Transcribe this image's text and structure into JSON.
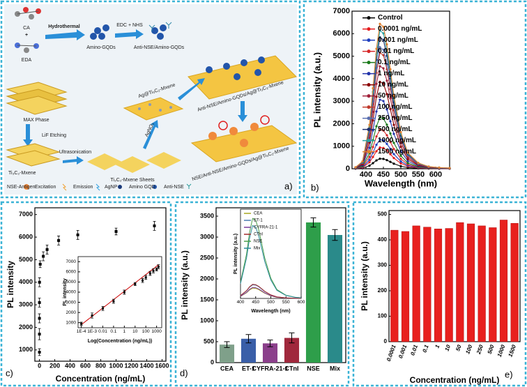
{
  "schematic": {
    "panel_label": "a)",
    "labels": {
      "ca": "CA",
      "eda": "EDA",
      "hydrothermal": "Hydrothermal",
      "amino_gqds": "Amino-GQDs",
      "edc_nhs": "EDC + NHS",
      "anti_nse_gqds": "Anti-NSE/Amino-GQDs",
      "anti_nse_gqds_mxene": "Anti-NSE/Amino-GQDs/Ag@Ti₃C₂-Mxene",
      "max_phase": "MAX Phase",
      "lif": "LiF Etching",
      "ti3c2": "Ti₃C₂-Mxene",
      "ultrasonication": "Ultrasonication",
      "sheets": "Ti₃C₂-Mxene Sheets",
      "agno3": "AgNO₃",
      "ag_mxene": "Ag@Ti₃C₂-Mxene",
      "nse_complex": "NSE/Anti-NSE/Amino-GQDs/Ag@Ti₃C₂-Mxene"
    },
    "legend": [
      "NSE-Antigen",
      "Excitation",
      "Emission",
      "AgNP",
      "Amino GQD",
      "Anti-NSE"
    ]
  },
  "chart_data": [
    {
      "type": "line",
      "panel_label": "b)",
      "x_label": "Wavelength (nm)",
      "y_label": "PL intensity (a.u.)",
      "markers": true,
      "legend": "upper right",
      "x": [
        370,
        390,
        410,
        420,
        430,
        440,
        450,
        460,
        470,
        480,
        500,
        520,
        550,
        580,
        610,
        640
      ],
      "xlim": [
        360,
        640
      ],
      "xticks": [
        400,
        450,
        500,
        550,
        600
      ],
      "ylim": [
        0,
        7000
      ],
      "yticks": [
        0,
        1000,
        2000,
        3000,
        4000,
        5000,
        6000,
        7000
      ],
      "series": [
        {
          "name": "Control",
          "color": "#000000",
          "values": [
            5,
            23,
            135,
            248,
            369,
            446,
            437,
            383,
            306,
            225,
            113,
            50,
            18,
            7,
            4,
            2
          ]
        },
        {
          "name": "0.0001 ng/mL",
          "color": "#e41a1c",
          "values": [
            10,
            48,
            285,
            523,
            779,
            941,
            922,
            808,
            646,
            475,
            238,
            105,
            38,
            14,
            8,
            5
          ]
        },
        {
          "name": "0.001 ng/mL",
          "color": "#1f3fbf",
          "values": [
            13,
            65,
            390,
            715,
            1066,
            1287,
            1261,
            1105,
            884,
            650,
            325,
            143,
            52,
            20,
            10,
            7
          ]
        },
        {
          "name": "0.01 ng/mL",
          "color": "#d62728",
          "values": [
            18,
            88,
            525,
            963,
            1435,
            1733,
            1698,
            1488,
            1190,
            875,
            438,
            193,
            70,
            26,
            14,
            9
          ]
        },
        {
          "name": "0.1 ng/mL",
          "color": "#1a7a1a",
          "values": [
            23,
            115,
            690,
            1265,
            1886,
            2277,
            2231,
            1955,
            1564,
            1150,
            575,
            253,
            92,
            35,
            18,
            12
          ]
        },
        {
          "name": "1 ng/mL",
          "color": "#2233aa",
          "values": [
            31,
            155,
            930,
            1705,
            2542,
            3069,
            3007,
            2635,
            2108,
            1550,
            775,
            341,
            124,
            47,
            25,
            16
          ]
        },
        {
          "name": "10 ng/mL",
          "color": "#8b0000",
          "values": [
            39,
            195,
            1170,
            2145,
            3198,
            3861,
            3783,
            3315,
            2652,
            1950,
            975,
            429,
            156,
            59,
            31,
            20
          ]
        },
        {
          "name": "50 ng/mL",
          "color": "#a0203a",
          "values": [
            46,
            230,
            1380,
            2530,
            3772,
            4554,
            4462,
            3910,
            3128,
            2300,
            1150,
            506,
            184,
            69,
            37,
            23
          ]
        },
        {
          "name": "100 ng/mL",
          "color": "#c0392b",
          "values": [
            52,
            260,
            1560,
            2860,
            4264,
            5148,
            5044,
            4420,
            3536,
            2600,
            1300,
            572,
            208,
            78,
            42,
            26
          ]
        },
        {
          "name": "250 ng/mL",
          "color": "#5a6fb0",
          "values": [
            55,
            273,
            1635,
            2998,
            4469,
            5396,
            5287,
            4633,
            3706,
            2725,
            1363,
            600,
            218,
            82,
            44,
            27
          ]
        },
        {
          "name": "500 ng/mL",
          "color": "#1e2f6e",
          "values": [
            59,
            295,
            1770,
            3245,
            4838,
            5841,
            5723,
            5015,
            4012,
            2950,
            1475,
            649,
            236,
            89,
            47,
            30
          ]
        },
        {
          "name": "1000 ng/mL",
          "color": "#2aa3a3",
          "values": [
            62,
            310,
            1860,
            3410,
            5084,
            6138,
            6014,
            5270,
            4216,
            3100,
            1550,
            682,
            248,
            93,
            50,
            31
          ]
        },
        {
          "name": "1500 ng/mL",
          "color": "#e08030",
          "values": [
            65,
            325,
            1950,
            3575,
            5330,
            6435,
            6305,
            5525,
            4420,
            3250,
            1625,
            715,
            260,
            98,
            52,
            33
          ]
        }
      ]
    },
    {
      "type": "scatter",
      "panel_label": "c)",
      "x_label": "Concentration (ng/mL)",
      "y_label": "PL intensity",
      "color": "#000000",
      "x": [
        0.0001,
        0.001,
        0.01,
        0.1,
        1,
        10,
        50,
        100,
        250,
        500,
        1000,
        1500
      ],
      "values": [
        900,
        1700,
        2400,
        3100,
        4000,
        4800,
        5150,
        5450,
        5850,
        6100,
        6250,
        6500
      ],
      "errors": [
        150,
        250,
        200,
        200,
        200,
        150,
        200,
        200,
        200,
        200,
        150,
        200
      ],
      "xlim": [
        -60,
        1650
      ],
      "xticks": [
        0,
        200,
        400,
        600,
        800,
        1000,
        1200,
        1400,
        1600
      ],
      "ylim": [
        500,
        7300
      ],
      "yticks": [
        1000,
        2000,
        3000,
        4000,
        5000,
        6000,
        7000
      ],
      "inset": {
        "type": "scatter",
        "x_label": "Log(Concentration (ng/mL))",
        "y_label": "PL intensity",
        "x_scale": "log",
        "color": "#000000",
        "x": [
          0.0001,
          0.001,
          0.01,
          0.1,
          1,
          10,
          50,
          100,
          250,
          500,
          1000,
          1500
        ],
        "values": [
          900,
          1700,
          2400,
          3100,
          4000,
          4800,
          5150,
          5450,
          5850,
          6100,
          6250,
          6500
        ],
        "errors": [
          150,
          250,
          200,
          200,
          200,
          150,
          200,
          200,
          200,
          200,
          150,
          200
        ],
        "fit_line": {
          "x": [
            0.0001,
            1500
          ],
          "values": [
            800,
            6700
          ],
          "color": "#cc0000"
        },
        "xlim": [
          5e-05,
          3000
        ],
        "xticks": [
          {
            "value": 0.0001,
            "label": "1E-4"
          },
          {
            "value": 0.001,
            "label": "1E-3"
          },
          0.01,
          0.1,
          1,
          10,
          100,
          1000
        ],
        "ylim": [
          500,
          7500
        ],
        "yticks": [
          1000,
          2000,
          3000,
          4000,
          5000,
          6000,
          7000
        ]
      }
    },
    {
      "type": "bar",
      "panel_label": "d)",
      "y_label": "PL intensity (a.u.)",
      "categories": [
        "CEA",
        "ET-1",
        "CYFRA-21-1",
        "CTnI",
        "NSE",
        "Mix"
      ],
      "values": [
        430,
        570,
        460,
        590,
        3350,
        3050
      ],
      "errors": [
        70,
        100,
        80,
        120,
        110,
        130
      ],
      "colors": [
        "#7fa08a",
        "#3a5fa8",
        "#8b3f8b",
        "#a0283c",
        "#2e9e4a",
        "#2a8a8a"
      ],
      "ylim": [
        0,
        3700
      ],
      "yticks": [
        0,
        500,
        1000,
        1500,
        2000,
        2500,
        3000,
        3500
      ],
      "inset": {
        "type": "line",
        "x_label": "Wavelength (nm)",
        "y_label": "PL intensity (a.u.)",
        "legend": "upper right",
        "x": [
          400,
          420,
          430,
          440,
          450,
          460,
          470,
          480,
          500,
          520,
          550,
          580,
          600
        ],
        "xlim": [
          400,
          600
        ],
        "xticks": [
          400,
          450,
          500,
          550,
          600
        ],
        "ylim": [
          0,
          3700
        ],
        "series": [
          {
            "name": "CEA",
            "color": "#a8a820",
            "values": [
              86,
              237,
              353,
              426,
              417,
              366,
              292,
              215,
              108,
              47,
              17,
              6,
              3
            ]
          },
          {
            "name": "ET-1",
            "color": "#4a7ab0",
            "values": [
              114,
              314,
              467,
              564,
              553,
              485,
              388,
              285,
              143,
              63,
              23,
              9,
              5
            ]
          },
          {
            "name": "CYFRA-21-1",
            "color": "#7a3a9a",
            "values": [
              92,
              253,
              377,
              455,
              446,
              391,
              313,
              230,
              115,
              51,
              18,
              7,
              4
            ]
          },
          {
            "name": "CTnI",
            "color": "#a02a2a",
            "values": [
              118,
              325,
              484,
              584,
              572,
              502,
              401,
              295,
              148,
              65,
              24,
              9,
              5
            ]
          },
          {
            "name": "NSE",
            "color": "#4a9e4a",
            "values": [
              670,
              1843,
              2747,
              3317,
              3250,
              2848,
              2278,
              1675,
              838,
              369,
              134,
              50,
              27
            ]
          },
          {
            "name": "Mix",
            "color": "#2a8a9a",
            "values": [
              610,
              1678,
              2501,
              3020,
              2959,
              2593,
              2074,
              1525,
              763,
              336,
              122,
              46,
              24
            ]
          }
        ]
      }
    },
    {
      "type": "bar",
      "panel_label": "e)",
      "x_label": "Concentration (ng/mL)",
      "y_label": "PL intensity (a.u.)",
      "color": "#e8201e",
      "categories": [
        "0.0001",
        "0.001",
        "0.01",
        "0.1",
        "1",
        "10",
        "50",
        "100",
        "250",
        "500",
        "1000",
        "1500"
      ],
      "values": [
        438,
        433,
        455,
        450,
        443,
        445,
        468,
        463,
        455,
        448,
        478,
        465
      ],
      "ylim": [
        0,
        515
      ],
      "yticks": [
        0,
        100,
        200,
        300,
        400,
        500
      ]
    }
  ]
}
